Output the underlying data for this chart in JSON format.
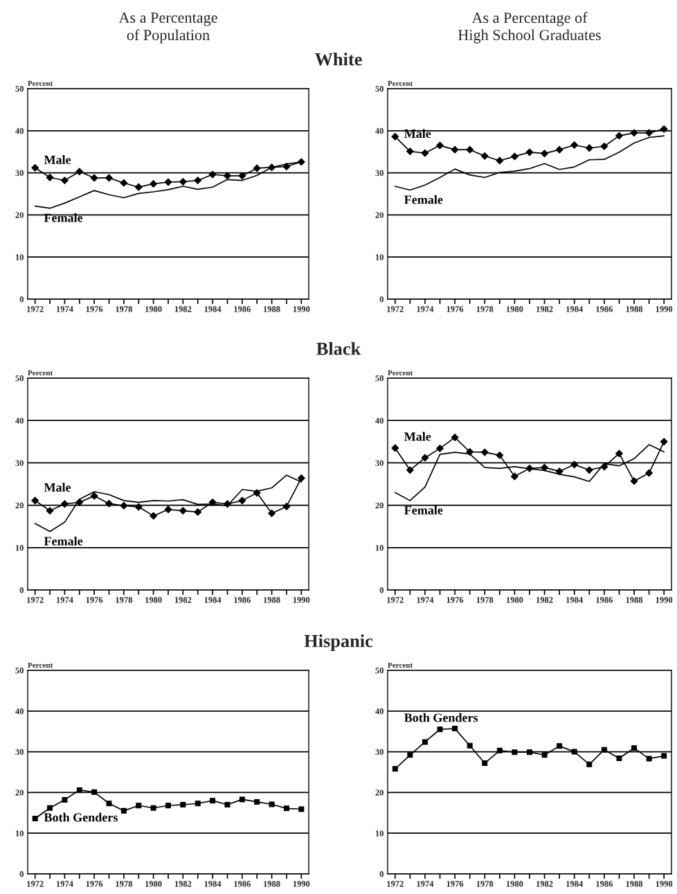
{
  "chart_data": [
    {
      "type": "line",
      "title": "As a Percentage\nof Population",
      "subtitle": "White",
      "ylabel": "Percent",
      "x": [
        1972,
        1973,
        1974,
        1975,
        1976,
        1977,
        1978,
        1979,
        1980,
        1981,
        1982,
        1983,
        1984,
        1985,
        1986,
        1987,
        1988,
        1989,
        1990
      ],
      "xlim": [
        1971.5,
        1990.5
      ],
      "xticks": [
        1972,
        {
          "value": 1973,
          "label": null
        },
        1974,
        {
          "value": 1975,
          "label": null
        },
        1976,
        {
          "value": 1977,
          "label": null
        },
        1978,
        {
          "value": 1979,
          "label": null
        },
        1980,
        {
          "value": 1981,
          "label": null
        },
        1982,
        {
          "value": 1983,
          "label": null
        },
        1984,
        {
          "value": 1985,
          "label": null
        },
        1986,
        {
          "value": 1987,
          "label": null
        },
        1988,
        {
          "value": 1989,
          "label": null
        },
        1990
      ],
      "ylim": [
        0,
        50
      ],
      "yticks": [
        0,
        10,
        20,
        30,
        40,
        50
      ],
      "grid": "y",
      "series": [
        {
          "name": "Male",
          "color": "#000000",
          "marker": "diamond",
          "values": [
            31.2,
            28.9,
            28.2,
            30.3,
            28.8,
            28.8,
            27.6,
            26.6,
            27.4,
            27.8,
            27.9,
            28.2,
            29.6,
            29.3,
            29.3,
            31.1,
            31.3,
            31.5,
            32.6
          ]
        },
        {
          "name": "Female",
          "color": "#000000",
          "marker": "none",
          "values": [
            22.1,
            21.6,
            22.8,
            24.3,
            25.8,
            24.8,
            24.1,
            25.1,
            25.5,
            26.0,
            26.8,
            26.1,
            26.6,
            28.4,
            28.2,
            29.4,
            31.3,
            32.1,
            32.6
          ]
        }
      ]
    },
    {
      "type": "line",
      "title": "As a Percentage of\nHigh School Graduates",
      "ylabel": "Percent",
      "x": [
        1972,
        1973,
        1974,
        1975,
        1976,
        1977,
        1978,
        1979,
        1980,
        1981,
        1982,
        1983,
        1984,
        1985,
        1986,
        1987,
        1988,
        1989,
        1990
      ],
      "xlim": [
        1971.5,
        1990.5
      ],
      "xticks": [
        1972,
        {
          "value": 1973,
          "label": null
        },
        1974,
        {
          "value": 1975,
          "label": null
        },
        1976,
        {
          "value": 1977,
          "label": null
        },
        1978,
        {
          "value": 1979,
          "label": null
        },
        1980,
        {
          "value": 1981,
          "label": null
        },
        1982,
        {
          "value": 1983,
          "label": null
        },
        1984,
        {
          "value": 1985,
          "label": null
        },
        1986,
        {
          "value": 1987,
          "label": null
        },
        1988,
        {
          "value": 1989,
          "label": null
        },
        1990
      ],
      "ylim": [
        0,
        50
      ],
      "yticks": [
        0,
        10,
        20,
        30,
        40,
        50
      ],
      "grid": "y",
      "series": [
        {
          "name": "Male",
          "color": "#000000",
          "marker": "diamond",
          "values": [
            38.6,
            35.1,
            34.7,
            36.5,
            35.5,
            35.5,
            34.0,
            32.9,
            33.9,
            34.9,
            34.6,
            35.5,
            36.6,
            35.9,
            36.3,
            38.8,
            39.5,
            39.5,
            40.4
          ]
        },
        {
          "name": "Female",
          "color": "#000000",
          "marker": "none",
          "values": [
            26.8,
            25.9,
            27.1,
            28.9,
            30.9,
            29.5,
            28.9,
            30.1,
            30.4,
            31.0,
            32.2,
            30.8,
            31.4,
            33.1,
            33.2,
            34.9,
            37.1,
            38.4,
            38.8
          ]
        }
      ]
    },
    {
      "type": "line",
      "subtitle": "Black",
      "ylabel": "Percent",
      "x": [
        1972,
        1973,
        1974,
        1975,
        1976,
        1977,
        1978,
        1979,
        1980,
        1981,
        1982,
        1983,
        1984,
        1985,
        1986,
        1987,
        1988,
        1989,
        1990
      ],
      "xlim": [
        1971.5,
        1990.5
      ],
      "xticks": [
        1972,
        {
          "value": 1973,
          "label": null
        },
        1974,
        {
          "value": 1975,
          "label": null
        },
        1976,
        {
          "value": 1977,
          "label": null
        },
        1978,
        {
          "value": 1979,
          "label": null
        },
        1980,
        {
          "value": 1981,
          "label": null
        },
        1982,
        {
          "value": 1983,
          "label": null
        },
        1984,
        {
          "value": 1985,
          "label": null
        },
        1986,
        {
          "value": 1987,
          "label": null
        },
        1988,
        {
          "value": 1989,
          "label": null
        },
        1990
      ],
      "ylim": [
        0,
        50
      ],
      "yticks": [
        0,
        10,
        20,
        30,
        40,
        50
      ],
      "grid": "y",
      "series": [
        {
          "name": "Male",
          "color": "#000000",
          "marker": "diamond",
          "values": [
            21.1,
            18.7,
            20.3,
            20.7,
            22.2,
            20.4,
            19.9,
            19.6,
            17.5,
            19.0,
            18.7,
            18.4,
            20.7,
            20.3,
            21.1,
            22.9,
            18.1,
            19.7,
            26.4
          ]
        },
        {
          "name": "Female",
          "color": "#000000",
          "marker": "none",
          "values": [
            15.7,
            13.8,
            16.0,
            21.4,
            23.2,
            22.5,
            21.1,
            20.7,
            21.1,
            21.0,
            21.3,
            20.2,
            20.3,
            19.9,
            23.7,
            23.3,
            24.1,
            27.1,
            25.5
          ]
        }
      ]
    },
    {
      "type": "line",
      "ylabel": "Percent",
      "x": [
        1972,
        1973,
        1974,
        1975,
        1976,
        1977,
        1978,
        1979,
        1980,
        1981,
        1982,
        1983,
        1984,
        1985,
        1986,
        1987,
        1988,
        1989,
        1990
      ],
      "xlim": [
        1971.5,
        1990.5
      ],
      "xticks": [
        1972,
        {
          "value": 1973,
          "label": null
        },
        1974,
        {
          "value": 1975,
          "label": null
        },
        1976,
        {
          "value": 1977,
          "label": null
        },
        1978,
        {
          "value": 1979,
          "label": null
        },
        1980,
        {
          "value": 1981,
          "label": null
        },
        1982,
        {
          "value": 1983,
          "label": null
        },
        1984,
        {
          "value": 1985,
          "label": null
        },
        1986,
        {
          "value": 1987,
          "label": null
        },
        1988,
        {
          "value": 1989,
          "label": null
        },
        1990
      ],
      "ylim": [
        0,
        50
      ],
      "yticks": [
        0,
        10,
        20,
        30,
        40,
        50
      ],
      "grid": "y",
      "series": [
        {
          "name": "Male",
          "color": "#000000",
          "marker": "diamond",
          "values": [
            33.5,
            28.3,
            31.2,
            33.4,
            36.0,
            32.6,
            32.5,
            31.8,
            26.8,
            28.7,
            28.9,
            28.0,
            29.6,
            28.3,
            29.1,
            32.2,
            25.7,
            27.6,
            35.0
          ]
        },
        {
          "name": "Female",
          "color": "#000000",
          "marker": "none",
          "values": [
            23.0,
            21.1,
            24.3,
            32.0,
            32.5,
            32.1,
            28.9,
            28.7,
            29.1,
            28.6,
            28.2,
            27.3,
            26.7,
            25.6,
            29.8,
            29.3,
            31.0,
            34.3,
            32.6
          ]
        }
      ]
    },
    {
      "type": "line",
      "subtitle": "Hispanic",
      "ylabel": "Percent",
      "x": [
        1972,
        1973,
        1974,
        1975,
        1976,
        1977,
        1978,
        1979,
        1980,
        1981,
        1982,
        1983,
        1984,
        1985,
        1986,
        1987,
        1988,
        1989,
        1990
      ],
      "xlim": [
        1971.5,
        1990.5
      ],
      "xticks": [
        1972,
        {
          "value": 1973,
          "label": null
        },
        1974,
        {
          "value": 1975,
          "label": null
        },
        1976,
        {
          "value": 1977,
          "label": null
        },
        1978,
        {
          "value": 1979,
          "label": null
        },
        1980,
        {
          "value": 1981,
          "label": null
        },
        1982,
        {
          "value": 1983,
          "label": null
        },
        1984,
        {
          "value": 1985,
          "label": null
        },
        1986,
        {
          "value": 1987,
          "label": null
        },
        1988,
        {
          "value": 1989,
          "label": null
        },
        1990
      ],
      "ylim": [
        0,
        50
      ],
      "yticks": [
        0,
        10,
        20,
        30,
        40,
        50
      ],
      "grid": "y",
      "series": [
        {
          "name": "Both Genders",
          "color": "#000000",
          "marker": "square",
          "values": [
            13.6,
            16.2,
            18.2,
            20.6,
            20.1,
            17.3,
            15.5,
            16.8,
            16.2,
            16.8,
            17.0,
            17.3,
            18.0,
            17.0,
            18.3,
            17.7,
            17.1,
            16.1,
            15.9
          ]
        }
      ]
    },
    {
      "type": "line",
      "ylabel": "Percent",
      "x": [
        1972,
        1973,
        1974,
        1975,
        1976,
        1977,
        1978,
        1979,
        1980,
        1981,
        1982,
        1983,
        1984,
        1985,
        1986,
        1987,
        1988,
        1989,
        1990
      ],
      "xlim": [
        1971.5,
        1990.5
      ],
      "xticks": [
        1972,
        {
          "value": 1973,
          "label": null
        },
        1974,
        {
          "value": 1975,
          "label": null
        },
        1976,
        {
          "value": 1977,
          "label": null
        },
        1978,
        {
          "value": 1979,
          "label": null
        },
        1980,
        {
          "value": 1981,
          "label": null
        },
        1982,
        {
          "value": 1983,
          "label": null
        },
        1984,
        {
          "value": 1985,
          "label": null
        },
        1986,
        {
          "value": 1987,
          "label": null
        },
        1988,
        {
          "value": 1989,
          "label": null
        },
        1990
      ],
      "ylim": [
        0,
        50
      ],
      "yticks": [
        0,
        10,
        20,
        30,
        40,
        50
      ],
      "grid": "y",
      "series": [
        {
          "name": "Both Genders",
          "color": "#000000",
          "marker": "square",
          "values": [
            25.8,
            29.2,
            32.4,
            35.5,
            35.7,
            31.5,
            27.2,
            30.3,
            29.9,
            29.9,
            29.2,
            31.4,
            30.0,
            26.9,
            30.5,
            28.4,
            30.9,
            28.3,
            29.0
          ]
        }
      ]
    }
  ]
}
